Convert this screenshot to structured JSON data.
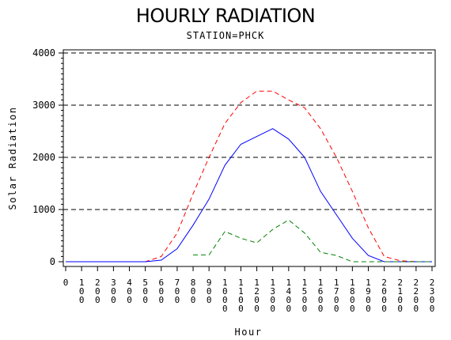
{
  "chart_data": {
    "type": "line",
    "title": "HOURLY RADIATION",
    "subtitle": "STATION=PHCK",
    "xlabel": "Hour",
    "ylabel": "Solar Radiation",
    "ylim": [
      0,
      4000
    ],
    "yticks": [
      0,
      1000,
      2000,
      3000,
      4000
    ],
    "grid": "horizontal dashed at major y ticks",
    "legend": "none",
    "x": [
      0,
      100,
      200,
      300,
      400,
      500,
      600,
      700,
      800,
      900,
      1000,
      1100,
      1200,
      1300,
      1400,
      1500,
      1600,
      1700,
      1800,
      1900,
      2000,
      2100,
      2200,
      2300
    ],
    "xtick_labels": [
      "0",
      "100",
      "200",
      "300",
      "400",
      "500",
      "600",
      "700",
      "800",
      "900",
      "1000",
      "1100",
      "1200",
      "1300",
      "1400",
      "1500",
      "1600",
      "1700",
      "1800",
      "1900",
      "2000",
      "2100",
      "2200",
      "2300"
    ],
    "series": [
      {
        "color": "#ff0000",
        "style": "dashed",
        "values": [
          0,
          0,
          0,
          0,
          0,
          0,
          100,
          550,
          1300,
          2000,
          2650,
          3050,
          3270,
          3270,
          3100,
          2950,
          2550,
          2000,
          1350,
          650,
          100,
          20,
          0,
          0
        ]
      },
      {
        "color": "#0000ff",
        "style": "solid",
        "values": [
          0,
          0,
          0,
          0,
          0,
          0,
          30,
          250,
          700,
          1200,
          1850,
          2250,
          2400,
          2550,
          2350,
          2000,
          1350,
          900,
          450,
          120,
          0,
          0,
          0,
          0
        ]
      },
      {
        "color": "#008000",
        "style": "dashed",
        "values": [
          null,
          null,
          null,
          null,
          null,
          null,
          null,
          null,
          130,
          130,
          580,
          450,
          360,
          620,
          800,
          550,
          180,
          120,
          0,
          0,
          0,
          0,
          0,
          0
        ]
      }
    ]
  }
}
